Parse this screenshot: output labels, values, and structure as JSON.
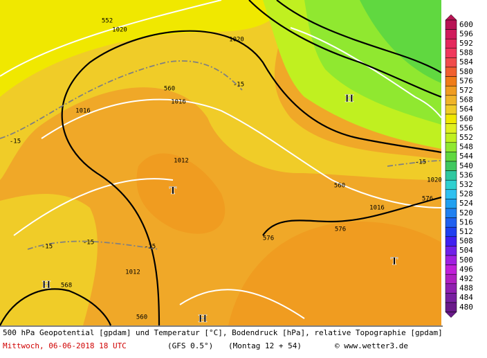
{
  "map_labels": [
    "552",
    "1020",
    "1020",
    "-15",
    "560",
    "1016",
    "1016",
    "1012",
    "560",
    "1016",
    "576",
    "576",
    "576",
    "-15",
    "1020",
    "-15",
    "-15",
    "-15",
    "-15",
    "1012",
    "568",
    "560"
  ],
  "pressure_centers": [
    "H",
    "T",
    "T",
    "H",
    "H"
  ],
  "legend": {
    "levels": [
      600,
      596,
      592,
      588,
      584,
      580,
      576,
      572,
      568,
      564,
      560,
      556,
      552,
      548,
      544,
      540,
      536,
      532,
      528,
      524,
      520,
      516,
      512,
      508,
      504,
      500,
      496,
      492,
      488,
      484,
      480
    ],
    "colors": [
      "#b81454",
      "#d01c5c",
      "#e4285c",
      "#f0385c",
      "#f04c4c",
      "#f06030",
      "#f07c18",
      "#f09c20",
      "#f0b428",
      "#f0cc28",
      "#f0e800",
      "#e0f020",
      "#c0f020",
      "#90e830",
      "#60d840",
      "#40c860",
      "#30c8a0",
      "#30d0d0",
      "#30c0f0",
      "#20a0f0",
      "#2080f0",
      "#2060f0",
      "#2040f0",
      "#4020f0",
      "#7020e8",
      "#a020e0",
      "#c020d8",
      "#b020c0",
      "#9020b0",
      "#7820a0",
      "#6a1a8a"
    ]
  },
  "footer": {
    "description": "500 hPa Geopotential [gpdam] und Temperatur [°C], Bodendruck [hPa], relative Topographie [gpdam]",
    "date": "Mittwoch, 06-06-2018  18 UTC",
    "model": "(GFS 0.5°)",
    "run": "(Montag 12 + 54)",
    "source": "© www.wetter3.de"
  }
}
